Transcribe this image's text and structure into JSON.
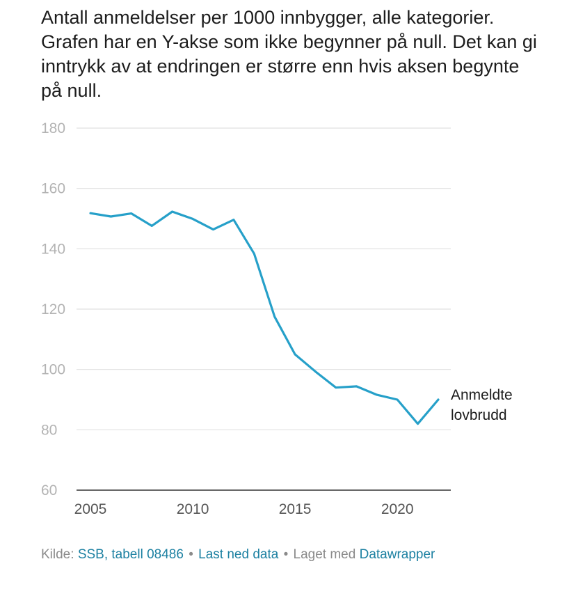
{
  "title": "Antall anmeldelser per 1000 innbygger, alle kategorier. Grafen har en Y-akse som ikke begynner på null. Det kan gi inntrykk av at endringen er større enn hvis aksen begynte på null.",
  "chart_data": {
    "type": "line",
    "title": "Antall anmeldelser per 1000 innbygger, alle kategorier.",
    "xlabel": "",
    "ylabel": "",
    "ylim": [
      60,
      180
    ],
    "xlim": [
      2005,
      2022
    ],
    "y_ticks": [
      "180",
      "160",
      "140",
      "120",
      "100",
      "80",
      "60"
    ],
    "x_ticks": [
      "2005",
      "2010",
      "2015",
      "2020"
    ],
    "grid": true,
    "series": [
      {
        "name": "Anmeldte lovbrudd",
        "color": "#26a0c9",
        "x": [
          2005,
          2006,
          2007,
          2008,
          2009,
          2010,
          2011,
          2012,
          2013,
          2014,
          2015,
          2016,
          2017,
          2018,
          2019,
          2020,
          2021,
          2022
        ],
        "values": [
          151.8,
          150.7,
          151.7,
          147.6,
          152.3,
          149.9,
          146.4,
          149.6,
          138.4,
          117.5,
          105.0,
          99.3,
          94.0,
          94.4,
          91.6,
          90.0,
          82.0,
          90.0
        ]
      }
    ],
    "series_label_lines": [
      "Anmeldte",
      "lovbrudd"
    ]
  },
  "footer": {
    "prefix": "Kilde:",
    "source_link": "SSB, tabell 08486",
    "separator": "•",
    "download_link": "Last ned data",
    "made_with": "Laget med",
    "tool_link": "Datawrapper"
  }
}
